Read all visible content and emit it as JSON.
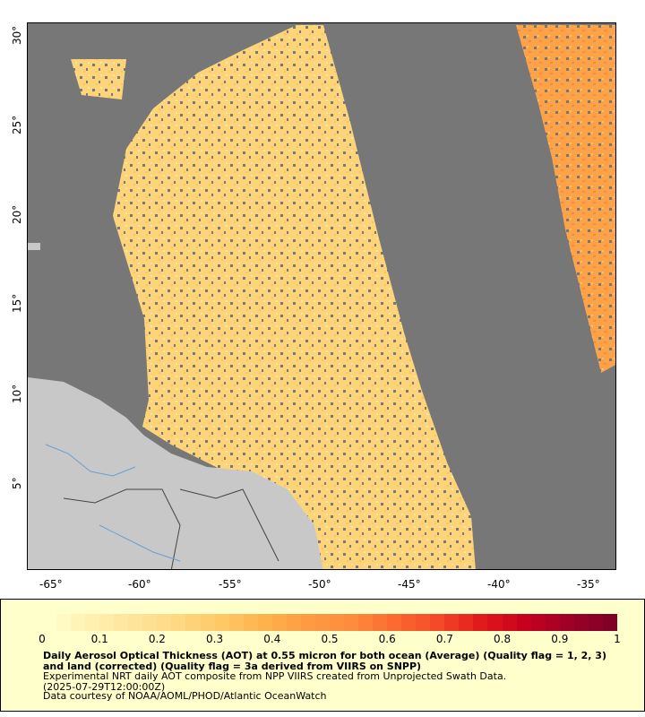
{
  "map": {
    "lon_ticks": [
      "-65°",
      "-60°",
      "-55°",
      "-50°",
      "-45°",
      "-40°",
      "-35°"
    ],
    "lat_ticks": [
      "5°",
      "10°",
      "15°",
      "20°",
      "25°",
      "30°"
    ],
    "no_data_color": "#777777",
    "land_color": "#c8c8c8"
  },
  "legend": {
    "ticks": [
      "0",
      "0.1",
      "0.2",
      "0.3",
      "0.4",
      "0.5",
      "0.6",
      "0.7",
      "0.8",
      "0.9",
      "1"
    ],
    "colors": [
      "#ffffcc",
      "#fff0b0",
      "#fee49a",
      "#fed882",
      "#fec865",
      "#feb24c",
      "#fd9a42",
      "#fd8d3c",
      "#fc6a2f",
      "#f44a2a",
      "#e31a1c",
      "#c8001e",
      "#a00026",
      "#800026"
    ],
    "title": "Daily Aerosol Optical Thickness (AOT) at 0.55 micron for both ocean (Average) (Quality flag = 1, 2, 3) and land (corrected) (Quality flag = 3a derived from VIIRS on SNPP)",
    "subtitle_line1": "Experimental NRT daily AOT composite from NPP VIIRS created from Unprojected Swath Data.",
    "subtitle_line2": "(2025-07-29T12:00:00Z)",
    "credit": "Data courtesy of NOAA/AOML/PHOD/Atlantic OceanWatch"
  }
}
